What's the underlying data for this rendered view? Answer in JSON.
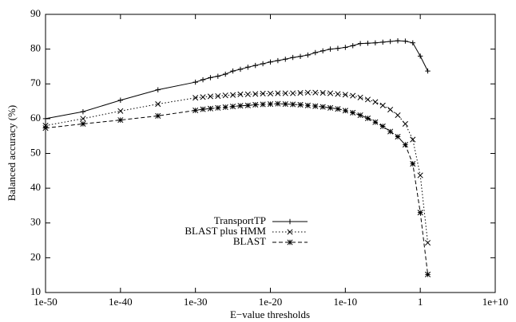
{
  "chart_data": {
    "type": "line",
    "xscale": "log",
    "x_label": "E−value thresholds",
    "y_label": "Balanced accuracy (%)",
    "x": [
      1e-50,
      1e-45,
      1e-40,
      1e-35,
      1e-30,
      1e-29,
      1e-28,
      1e-27,
      1e-26,
      1e-25,
      1e-24,
      1e-23,
      1e-22,
      1e-21,
      1e-20,
      1e-19,
      1e-18,
      1e-17,
      1e-16,
      1e-15,
      1e-14,
      1e-13,
      1e-12,
      1e-11,
      1e-10,
      1e-09,
      1e-08,
      1e-07,
      1e-06,
      1e-05,
      0.0001,
      0.001,
      0.01,
      0.1,
      1,
      10
    ],
    "series": [
      {
        "name": "TransportTP",
        "color": "#000000",
        "dash": "solid",
        "marker": "plus",
        "values": [
          60,
          62,
          65.3,
          68.3,
          70.5,
          71.2,
          71.8,
          72.2,
          72.8,
          73.7,
          74.2,
          74.8,
          75.3,
          75.8,
          76.3,
          76.7,
          77.1,
          77.6,
          77.9,
          78.3,
          79,
          79.5,
          80,
          80.2,
          80.5,
          81,
          81.6,
          81.7,
          81.8,
          82,
          82.2,
          82.4,
          82.3,
          81.8,
          78,
          73.7
        ]
      },
      {
        "name": "BLAST plus HMM",
        "color": "#000000",
        "dash": "dotted",
        "marker": "cross",
        "values": [
          58,
          60,
          62.2,
          64.2,
          66,
          66.2,
          66.4,
          66.5,
          66.7,
          66.8,
          67,
          67,
          67.1,
          67.2,
          67.2,
          67.3,
          67.3,
          67.3,
          67.4,
          67.5,
          67.5,
          67.4,
          67.3,
          67.1,
          66.9,
          66.6,
          66.1,
          65.5,
          64.8,
          63.8,
          62.6,
          61,
          58.5,
          54,
          43.7,
          24.3
        ]
      },
      {
        "name": "BLAST",
        "color": "#000000",
        "dash": "dashed",
        "marker": "star",
        "values": [
          57.3,
          58.5,
          59.6,
          60.8,
          62.4,
          62.7,
          62.9,
          63.1,
          63.3,
          63.5,
          63.7,
          63.8,
          64,
          64.1,
          64.2,
          64.3,
          64.2,
          64.1,
          64,
          63.8,
          63.6,
          63.4,
          63.1,
          62.8,
          62.3,
          61.7,
          61,
          60.1,
          59,
          57.8,
          56.3,
          54.8,
          52.5,
          47,
          33,
          15.2
        ]
      }
    ],
    "xlim": [
      1e-50,
      10000000000.0
    ],
    "xticks": [
      {
        "value": 1e-50,
        "label": "1e-50"
      },
      {
        "value": 1e-40,
        "label": "1e-40"
      },
      {
        "value": 1e-30,
        "label": "1e-30"
      },
      {
        "value": 1e-20,
        "label": "1e-20"
      },
      {
        "value": 1e-10,
        "label": "1e-10"
      },
      1,
      {
        "value": 10000000000.0,
        "label": "1e+10"
      }
    ],
    "ylim": [
      10,
      90
    ],
    "yticks": [
      10,
      20,
      30,
      40,
      50,
      60,
      70,
      80,
      90
    ],
    "legend": "center"
  }
}
